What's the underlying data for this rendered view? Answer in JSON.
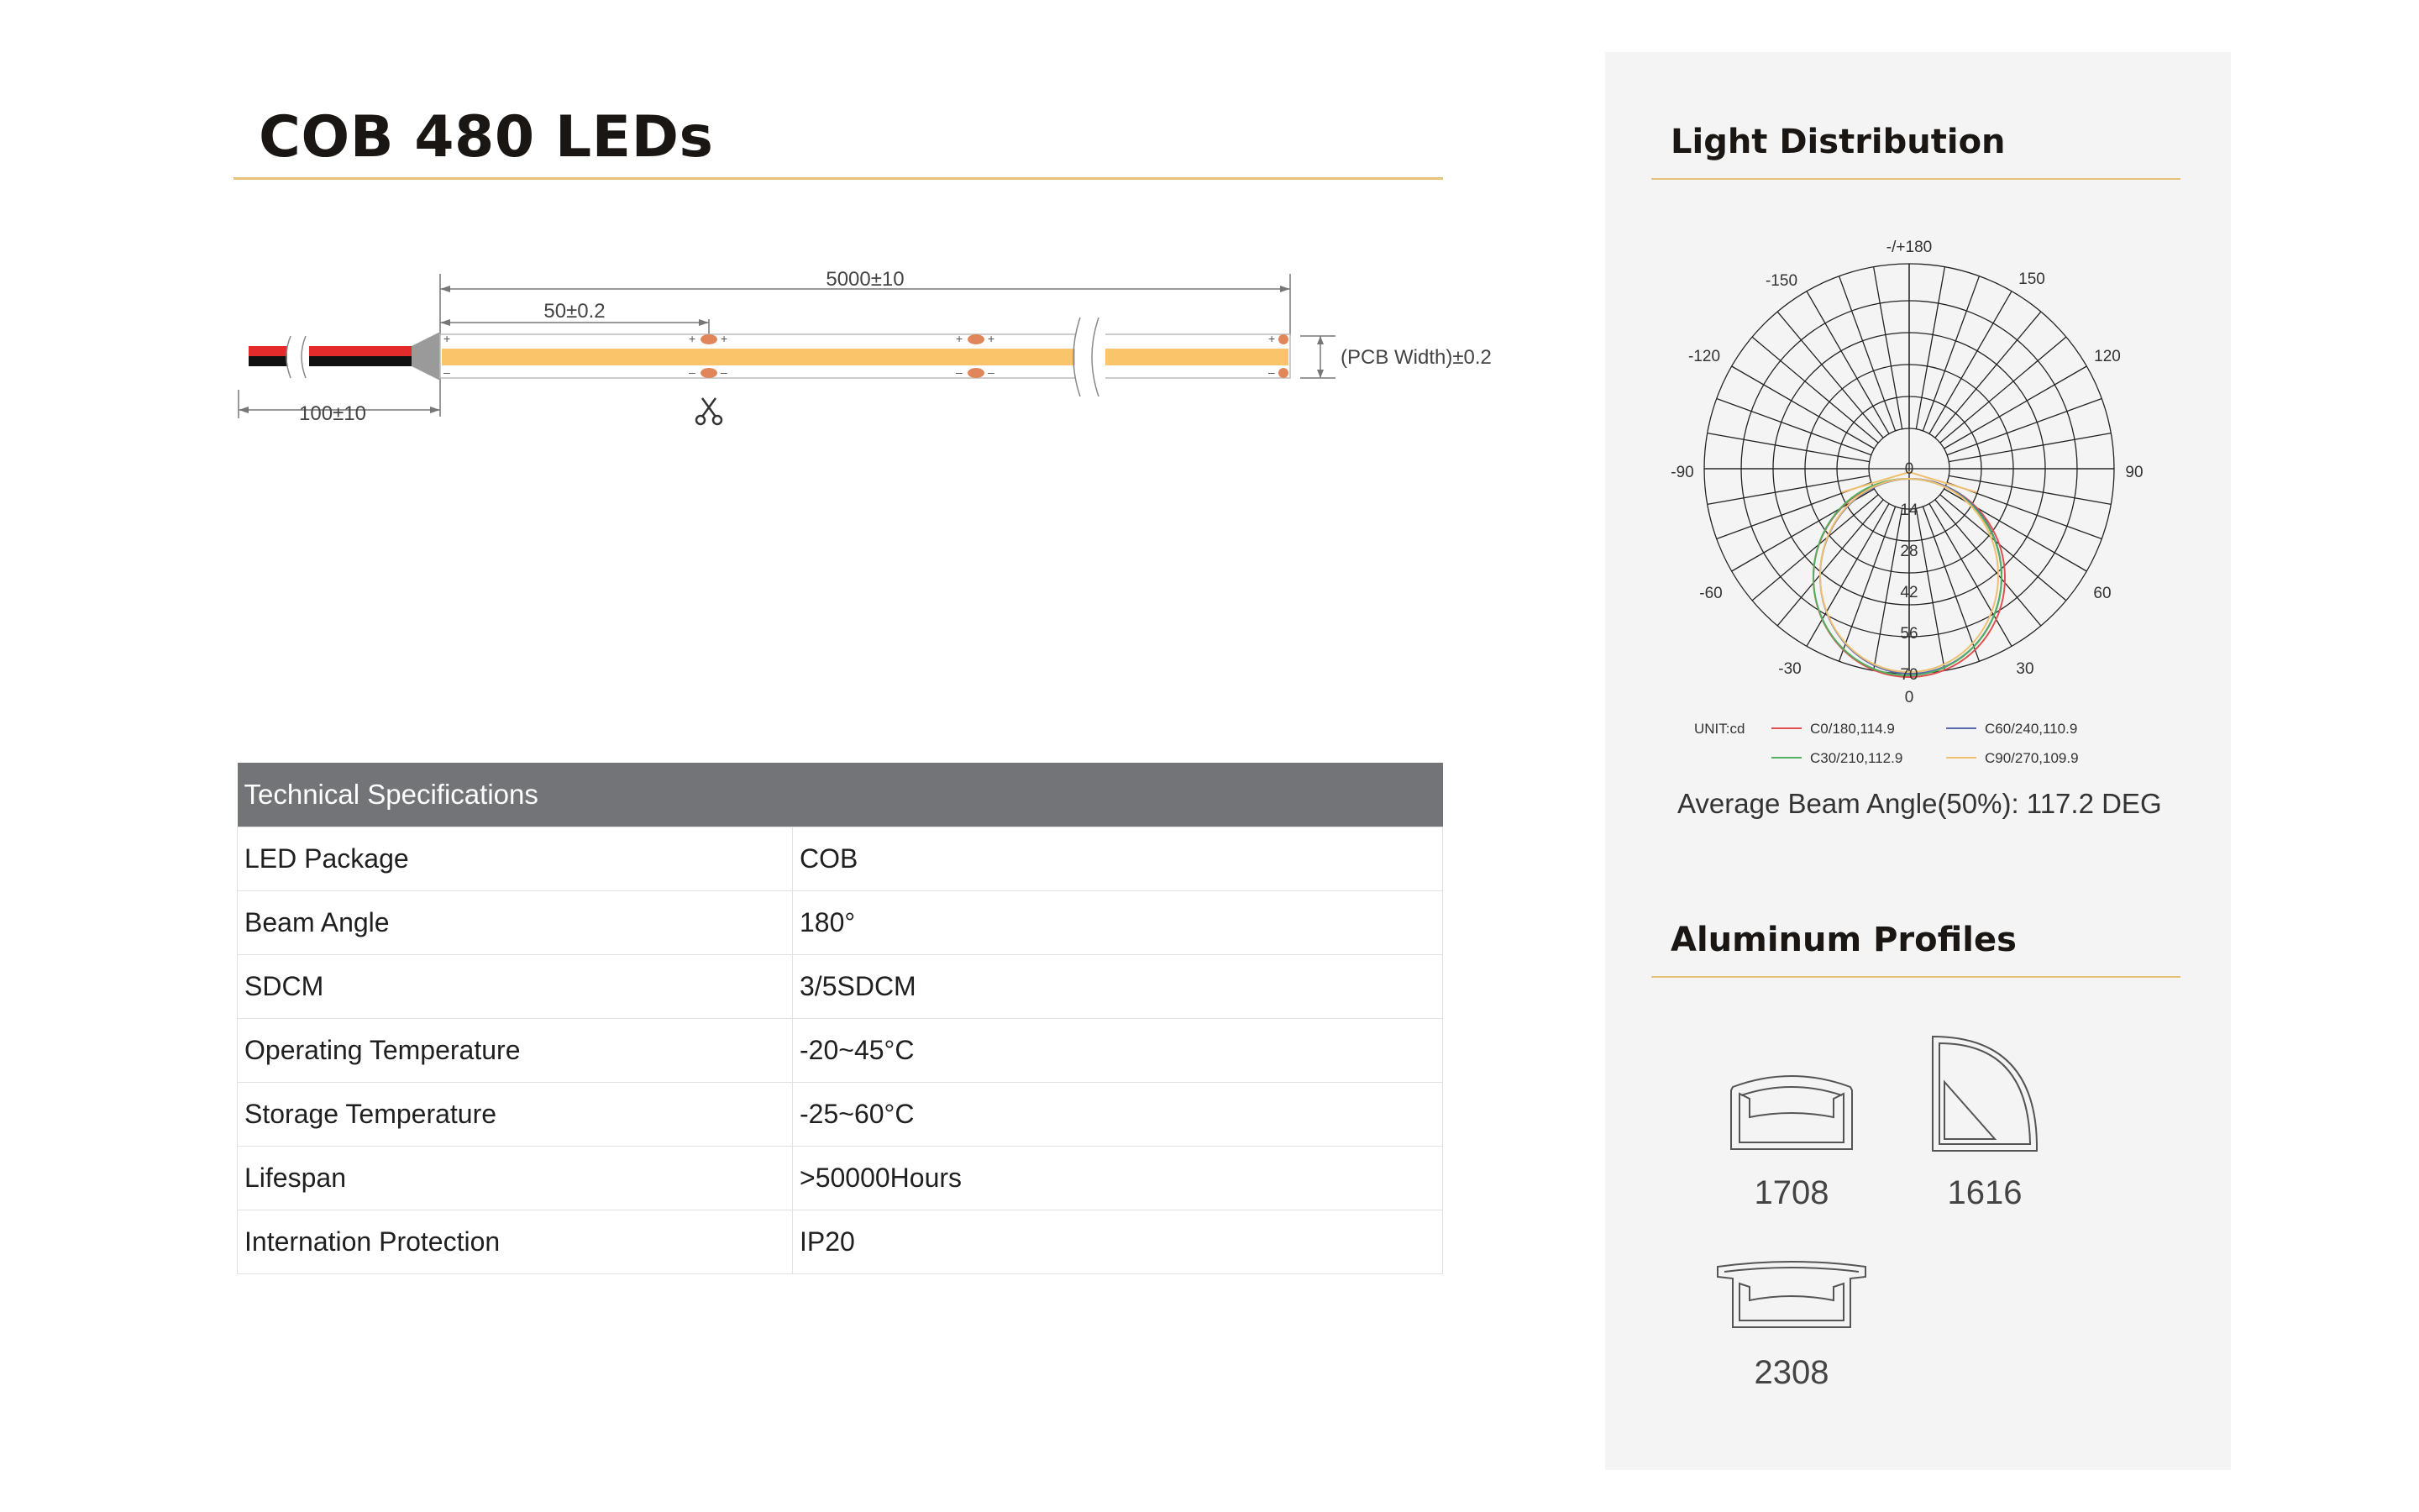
{
  "title": "COB 480 LEDs",
  "diagram": {
    "total_length": "5000±10",
    "cut_length": "50±0.2",
    "lead_length": "100±10",
    "pcb_width": "(PCB Width)±0.2"
  },
  "specs": {
    "header": "Technical Specifications",
    "rows": [
      {
        "label": "LED Package",
        "value": "COB"
      },
      {
        "label": "Beam Angle",
        "value": "180°"
      },
      {
        "label": "SDCM",
        "value": "3/5SDCM"
      },
      {
        "label": "Operating Temperature",
        "value": "-20~45°C"
      },
      {
        "label": "Storage Temperature",
        "value": "-25~60°C"
      },
      {
        "label": "Lifespan",
        "value": ">50000Hours"
      },
      {
        "label": "Internation Protection",
        "value": "IP20"
      }
    ]
  },
  "light_distribution": {
    "title": "Light Distribution",
    "angle_labels": {
      "top": "-/+180",
      "n150": "-150",
      "p150": "150",
      "n120": "-120",
      "p120": "120",
      "n90": "-90",
      "p90": "90",
      "n60": "-60",
      "p60": "60",
      "n30": "-30",
      "p30": "30",
      "bottom": "0"
    },
    "radial_labels": [
      "0",
      "14",
      "28",
      "42",
      "56",
      "70"
    ],
    "unit": "UNIT:cd",
    "legend": [
      {
        "label": "C0/180,114.9",
        "color": "#e05050"
      },
      {
        "label": "C60/240,110.9",
        "color": "#5a6ab0"
      },
      {
        "label": "C30/210,112.9",
        "color": "#52b060"
      },
      {
        "label": "C90/270,109.9",
        "color": "#f0c070"
      }
    ],
    "beam_angle": "Average Beam Angle(50%): 117.2 DEG"
  },
  "profiles": {
    "title": "Aluminum Profiles",
    "items": [
      {
        "code": "1708",
        "icon": "u-channel-profile-icon"
      },
      {
        "code": "1616",
        "icon": "corner-profile-icon"
      },
      {
        "code": "2308",
        "icon": "flanged-profile-icon"
      }
    ]
  }
}
